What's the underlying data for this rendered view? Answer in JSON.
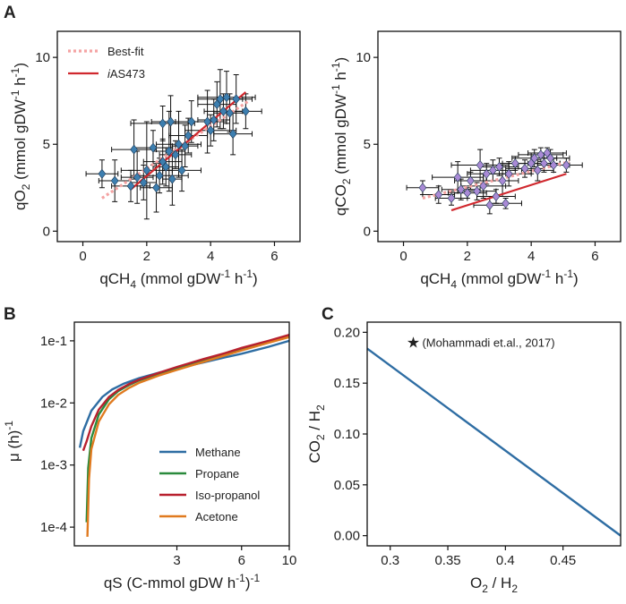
{
  "panels": {
    "a": "A",
    "b": "B",
    "c": "C"
  },
  "colors": {
    "point_blue": "#3d7fb0",
    "point_purple": "#a98ad6",
    "bestfit": "#f4a3a3",
    "model_red": "#d0282e",
    "methane": "#2e6da3",
    "propane": "#2a8a3c",
    "isopropanol": "#b8202e",
    "acetone": "#e07a1f",
    "line_c": "#2e6da3"
  },
  "chart_data": [
    {
      "id": "a_left",
      "type": "scatter",
      "xlabel": {
        "main": "qCH",
        "sub": "4",
        "tail": " (mmol gDW",
        "sup": "-1",
        "tail2": " h",
        "sup2": "-1",
        "tail3": ")"
      },
      "ylabel": {
        "main": "qO",
        "sub": "2",
        "tail": " (mmol gDW",
        "sup": "-1",
        "tail2": " h",
        "sup2": "-1",
        "tail3": ")"
      },
      "xlim": [
        -0.8,
        6.8
      ],
      "ylim": [
        -0.6,
        11.5
      ],
      "xticks": [
        0,
        2,
        4,
        6
      ],
      "yticks": [
        0,
        5,
        10
      ],
      "legend": {
        "position": "top-left",
        "entries": [
          "Best-fit",
          "iAS473"
        ],
        "italic_prefix": "i"
      },
      "points": [
        {
          "x": 0.6,
          "y": 3.3,
          "xe": 0.5,
          "ye": 0.8
        },
        {
          "x": 1.0,
          "y": 2.9,
          "xe": 0.5,
          "ye": 1.2
        },
        {
          "x": 1.5,
          "y": 2.6,
          "xe": 0.6,
          "ye": 0.9
        },
        {
          "x": 1.6,
          "y": 4.7,
          "xe": 0.7,
          "ye": 1.7
        },
        {
          "x": 1.7,
          "y": 3.1,
          "xe": 0.5,
          "ye": 1.5
        },
        {
          "x": 1.9,
          "y": 2.8,
          "xe": 0.4,
          "ye": 1.0
        },
        {
          "x": 2.0,
          "y": 3.5,
          "xe": 0.8,
          "ye": 2.8
        },
        {
          "x": 2.2,
          "y": 4.8,
          "xe": 0.6,
          "ye": 1.0
        },
        {
          "x": 2.3,
          "y": 2.5,
          "xe": 0.5,
          "ye": 1.4
        },
        {
          "x": 2.4,
          "y": 3.2,
          "xe": 0.9,
          "ye": 1.0
        },
        {
          "x": 2.5,
          "y": 4.0,
          "xe": 0.6,
          "ye": 1.3
        },
        {
          "x": 2.5,
          "y": 6.2,
          "xe": 1.0,
          "ye": 1.0
        },
        {
          "x": 2.6,
          "y": 3.7,
          "xe": 0.4,
          "ye": 1.1
        },
        {
          "x": 2.7,
          "y": 4.6,
          "xe": 0.5,
          "ye": 2.3
        },
        {
          "x": 2.75,
          "y": 6.3,
          "xe": 0.6,
          "ye": 1.5
        },
        {
          "x": 2.8,
          "y": 3.0,
          "xe": 0.3,
          "ye": 1.5
        },
        {
          "x": 2.9,
          "y": 4.4,
          "xe": 0.5,
          "ye": 0.8
        },
        {
          "x": 3.0,
          "y": 5.0,
          "xe": 0.7,
          "ye": 1.9
        },
        {
          "x": 3.1,
          "y": 3.5,
          "xe": 0.6,
          "ye": 1.2
        },
        {
          "x": 3.2,
          "y": 4.9,
          "xe": 0.4,
          "ye": 1.2
        },
        {
          "x": 3.3,
          "y": 5.5,
          "xe": 0.6,
          "ye": 1.0
        },
        {
          "x": 3.4,
          "y": 6.3,
          "xe": 0.5,
          "ye": 1.2
        },
        {
          "x": 3.9,
          "y": 6.3,
          "xe": 0.6,
          "ye": 1.8
        },
        {
          "x": 4.0,
          "y": 5.8,
          "xe": 0.8,
          "ye": 0.9
        },
        {
          "x": 4.1,
          "y": 6.4,
          "xe": 0.5,
          "ye": 1.2
        },
        {
          "x": 4.2,
          "y": 7.3,
          "xe": 0.6,
          "ye": 1.3
        },
        {
          "x": 4.3,
          "y": 7.6,
          "xe": 0.7,
          "ye": 1.7
        },
        {
          "x": 4.4,
          "y": 6.9,
          "xe": 0.6,
          "ye": 1.0
        },
        {
          "x": 4.5,
          "y": 7.7,
          "xe": 0.9,
          "ye": 1.5
        },
        {
          "x": 4.6,
          "y": 6.8,
          "xe": 0.5,
          "ye": 1.1
        },
        {
          "x": 4.7,
          "y": 5.6,
          "xe": 0.6,
          "ye": 1.2
        },
        {
          "x": 4.8,
          "y": 7.6,
          "xe": 0.5,
          "ye": 1.4
        },
        {
          "x": 5.1,
          "y": 6.9,
          "xe": 0.5,
          "ye": 1.0
        }
      ],
      "lines": [
        {
          "name": "Best-fit",
          "style": "dotted",
          "x": [
            0.6,
            5.2
          ],
          "y": [
            1.9,
            7.5
          ]
        },
        {
          "name": "iAS473",
          "style": "solid",
          "x": [
            1.5,
            5.1
          ],
          "y": [
            2.4,
            8.0
          ]
        }
      ]
    },
    {
      "id": "a_right",
      "type": "scatter",
      "xlabel": {
        "main": "qCH",
        "sub": "4",
        "tail": " (mmol gDW",
        "sup": "-1",
        "tail2": " h",
        "sup2": "-1",
        "tail3": ")"
      },
      "ylabel": {
        "main": "qCO",
        "sub": "2",
        "tail": " (mmol gDW",
        "sup": "-1",
        "tail2": " h",
        "sup2": "-1",
        "tail3": ")"
      },
      "xlim": [
        -0.8,
        6.8
      ],
      "ylim": [
        -0.6,
        11.5
      ],
      "xticks": [
        0,
        2,
        4,
        6
      ],
      "yticks": [
        0,
        5,
        10
      ],
      "points": [
        {
          "x": 0.6,
          "y": 2.5,
          "xe": 0.5,
          "ye": 0.4
        },
        {
          "x": 1.1,
          "y": 2.1,
          "xe": 0.5,
          "ye": 0.5
        },
        {
          "x": 1.5,
          "y": 1.9,
          "xe": 0.5,
          "ye": 0.4
        },
        {
          "x": 1.7,
          "y": 3.1,
          "xe": 0.8,
          "ye": 0.9
        },
        {
          "x": 1.8,
          "y": 2.4,
          "xe": 0.6,
          "ye": 0.6
        },
        {
          "x": 2.0,
          "y": 2.2,
          "xe": 0.6,
          "ye": 0.3
        },
        {
          "x": 2.1,
          "y": 2.9,
          "xe": 0.5,
          "ye": 0.5
        },
        {
          "x": 2.3,
          "y": 2.3,
          "xe": 0.6,
          "ye": 0.5
        },
        {
          "x": 2.4,
          "y": 3.8,
          "xe": 0.9,
          "ye": 0.9
        },
        {
          "x": 2.5,
          "y": 2.6,
          "xe": 0.7,
          "ye": 0.7
        },
        {
          "x": 2.6,
          "y": 3.3,
          "xe": 0.6,
          "ye": 0.6
        },
        {
          "x": 2.7,
          "y": 1.5,
          "xe": 0.5,
          "ye": 0.5
        },
        {
          "x": 2.8,
          "y": 3.5,
          "xe": 0.7,
          "ye": 0.6
        },
        {
          "x": 2.9,
          "y": 2.0,
          "xe": 0.6,
          "ye": 0.4
        },
        {
          "x": 3.0,
          "y": 3.7,
          "xe": 0.6,
          "ye": 0.5
        },
        {
          "x": 3.1,
          "y": 2.9,
          "xe": 0.5,
          "ye": 0.9
        },
        {
          "x": 3.2,
          "y": 1.6,
          "xe": 0.5,
          "ye": 0.3
        },
        {
          "x": 3.3,
          "y": 3.3,
          "xe": 0.7,
          "ye": 0.7
        },
        {
          "x": 3.5,
          "y": 3.9,
          "xe": 0.5,
          "ye": 0.4
        },
        {
          "x": 3.8,
          "y": 3.6,
          "xe": 0.6,
          "ye": 0.5
        },
        {
          "x": 4.0,
          "y": 3.9,
          "xe": 0.9,
          "ye": 0.6
        },
        {
          "x": 4.1,
          "y": 4.2,
          "xe": 0.7,
          "ye": 0.5
        },
        {
          "x": 4.2,
          "y": 3.5,
          "xe": 0.5,
          "ye": 0.6
        },
        {
          "x": 4.3,
          "y": 4.4,
          "xe": 0.7,
          "ye": 0.4
        },
        {
          "x": 4.4,
          "y": 3.9,
          "xe": 0.5,
          "ye": 0.5
        },
        {
          "x": 4.5,
          "y": 4.5,
          "xe": 0.6,
          "ye": 0.3
        },
        {
          "x": 4.6,
          "y": 4.2,
          "xe": 0.6,
          "ye": 0.5
        },
        {
          "x": 4.7,
          "y": 3.8,
          "xe": 0.5,
          "ye": 0.4
        },
        {
          "x": 5.1,
          "y": 3.8,
          "xe": 0.5,
          "ye": 0.4
        }
      ],
      "lines": [
        {
          "name": "Best-fit",
          "style": "dotted",
          "x": [
            0.6,
            5.2
          ],
          "y": [
            1.9,
            4.0
          ]
        },
        {
          "name": "iAS473",
          "style": "solid",
          "x": [
            1.5,
            5.1
          ],
          "y": [
            1.2,
            3.3
          ]
        }
      ]
    },
    {
      "id": "b",
      "type": "line",
      "xlabel": {
        "main": "qS (C-mmol gDW",
        "sup": "-1",
        "tail": " h",
        "sup2": "-1",
        "tail2": ")"
      },
      "ylabel": {
        "main": "μ (h",
        "sup": "-1",
        "tail": ")"
      },
      "xscale": "log",
      "yscale": "log",
      "xlim": [
        1.0,
        10.0
      ],
      "ylim": [
        5e-05,
        0.2
      ],
      "xticks": [
        3,
        6,
        10
      ],
      "xtick_labels": [
        "3",
        "6",
        "10"
      ],
      "yticks": [
        0.0001,
        0.001,
        0.01,
        0.1
      ],
      "ytick_labels": [
        "1e-4",
        "1e-3",
        "1e-2",
        "1e-1"
      ],
      "legend": {
        "position": "bottom-right",
        "entries": [
          "Methane",
          "Propane",
          "Iso-propanol",
          "Acetone"
        ]
      },
      "series": [
        {
          "name": "Methane",
          "color_key": "methane",
          "x": [
            1.06,
            1.1,
            1.2,
            1.35,
            1.5,
            1.7,
            2,
            2.5,
            3,
            4,
            5,
            6,
            8,
            10
          ],
          "y": [
            0.0019,
            0.0035,
            0.0075,
            0.0125,
            0.0165,
            0.0205,
            0.025,
            0.031,
            0.036,
            0.045,
            0.054,
            0.062,
            0.08,
            0.1
          ]
        },
        {
          "name": "Propane",
          "color_key": "propane",
          "x": [
            1.14,
            1.16,
            1.2,
            1.3,
            1.45,
            1.6,
            1.8,
            2,
            2.5,
            3,
            4,
            5,
            6,
            8,
            10
          ],
          "y": [
            0.00012,
            0.0009,
            0.0027,
            0.0065,
            0.0115,
            0.0155,
            0.0195,
            0.023,
            0.03,
            0.036,
            0.048,
            0.06,
            0.073,
            0.096,
            0.12
          ]
        },
        {
          "name": "Iso-propanol",
          "color_key": "isopropanol",
          "x": [
            1.1,
            1.14,
            1.2,
            1.3,
            1.45,
            1.6,
            1.8,
            2,
            2.5,
            3,
            4,
            5,
            6,
            8,
            10
          ],
          "y": [
            0.0017,
            0.0024,
            0.0042,
            0.0078,
            0.0125,
            0.0162,
            0.0202,
            0.0236,
            0.031,
            0.038,
            0.051,
            0.063,
            0.077,
            0.1,
            0.125
          ]
        },
        {
          "name": "Acetone",
          "color_key": "acetone",
          "x": [
            1.15,
            1.17,
            1.2,
            1.3,
            1.45,
            1.6,
            1.8,
            2,
            2.5,
            3,
            4,
            5,
            6,
            8,
            10
          ],
          "y": [
            7e-05,
            0.0006,
            0.0018,
            0.005,
            0.0095,
            0.0135,
            0.0175,
            0.021,
            0.028,
            0.034,
            0.046,
            0.058,
            0.07,
            0.093,
            0.115
          ]
        }
      ]
    },
    {
      "id": "c",
      "type": "line",
      "xlabel": {
        "main": "O",
        "sub": "2",
        "tail": " / H",
        "sub2": "2"
      },
      "ylabel": {
        "main": "CO",
        "sub": "2",
        "tail": " / H",
        "sub2": "2"
      },
      "xlim": [
        0.28,
        0.5
      ],
      "ylim": [
        -0.01,
        0.21
      ],
      "xticks": [
        0.3,
        0.35,
        0.4,
        0.45
      ],
      "xtick_labels": [
        "0.3",
        "0.35",
        "0.4",
        "0.45"
      ],
      "yticks": [
        0.0,
        0.05,
        0.1,
        0.15,
        0.2
      ],
      "ytick_labels": [
        "0.00",
        "0.05",
        "0.10",
        "0.15",
        "0.20"
      ],
      "series": [
        {
          "name": "line",
          "x": [
            0.28,
            0.5
          ],
          "y": [
            0.184,
            0.0
          ]
        }
      ],
      "annotation": {
        "marker": "★",
        "x": 0.32,
        "y": 0.19,
        "text": "(Mohammadi et.al., 2017)"
      }
    }
  ]
}
